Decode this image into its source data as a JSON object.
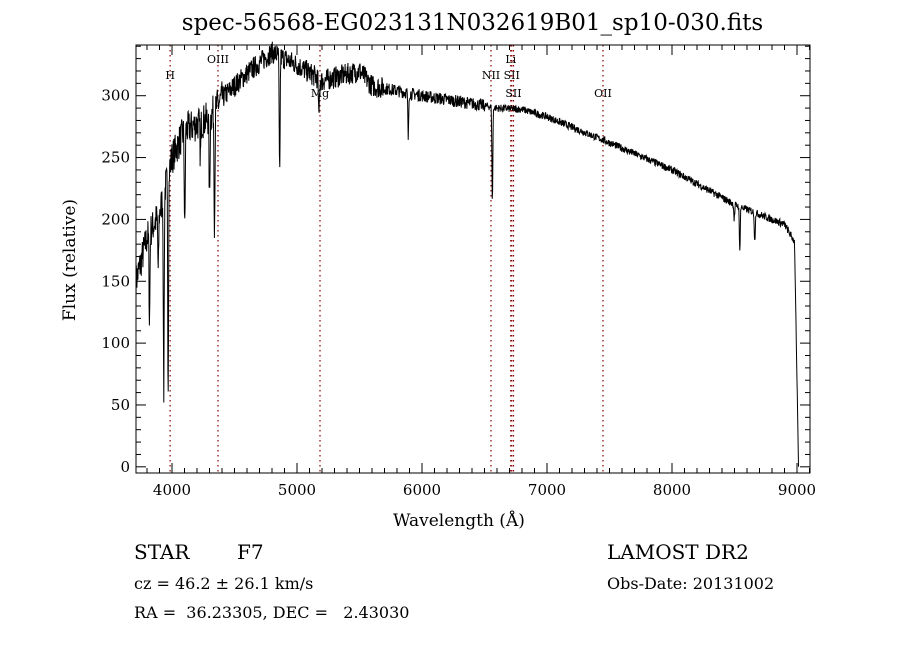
{
  "chart_data": {
    "type": "line",
    "title": "spec-56568-EG023131N032619B01_sp10-030.fits",
    "xlabel": "Wavelength (Å)",
    "ylabel": "Flux (relative)",
    "xlim": [
      3712,
      9104
    ],
    "ylim": [
      -5,
      341
    ],
    "xticks": [
      4000,
      5000,
      6000,
      7000,
      8000,
      9000
    ],
    "yticks": [
      0,
      50,
      100,
      150,
      200,
      250,
      300
    ],
    "grid": false,
    "continuum": [
      [
        3712,
        150
      ],
      [
        3800,
        185
      ],
      [
        3900,
        205
      ],
      [
        4000,
        250
      ],
      [
        4100,
        272
      ],
      [
        4300,
        282
      ],
      [
        4400,
        298
      ],
      [
        4600,
        318
      ],
      [
        4800,
        335
      ],
      [
        5000,
        325
      ],
      [
        5200,
        312
      ],
      [
        5500,
        320
      ],
      [
        5600,
        308
      ],
      [
        6000,
        300
      ],
      [
        6500,
        292
      ],
      [
        6600,
        290
      ],
      [
        6800,
        289
      ],
      [
        7000,
        283
      ],
      [
        7500,
        262
      ],
      [
        8000,
        240
      ],
      [
        8500,
        212
      ],
      [
        8900,
        196
      ],
      [
        8980,
        182
      ],
      [
        9000,
        70
      ],
      [
        9012,
        0
      ]
    ],
    "absorption_lines": [
      [
        3820,
        120
      ],
      [
        3890,
        155
      ],
      [
        3934,
        58
      ],
      [
        3969,
        66
      ],
      [
        4102,
        190
      ],
      [
        4227,
        250
      ],
      [
        4300,
        215
      ],
      [
        4340,
        198
      ],
      [
        4861,
        235
      ],
      [
        5175,
        280
      ],
      [
        5890,
        265
      ],
      [
        6563,
        215
      ],
      [
        8498,
        200
      ],
      [
        8542,
        175
      ],
      [
        8662,
        182
      ]
    ],
    "line_markers": [
      {
        "label": "H",
        "wavelength": 3985,
        "label_row": 2
      },
      {
        "label": "OIII",
        "wavelength": 4368,
        "label_row": 1
      },
      {
        "label": "Mg",
        "wavelength": 5184,
        "label_row": 3
      },
      {
        "label": "NII",
        "wavelength": 6552,
        "label_row": 2
      },
      {
        "label": "Li",
        "wavelength": 6710,
        "label_row": 1
      },
      {
        "label": "SII",
        "wavelength": 6718,
        "label_row": 2
      },
      {
        "label": "SII",
        "wavelength": 6732,
        "label_row": 3
      },
      {
        "label": "OII",
        "wavelength": 7448,
        "label_row": 3
      }
    ],
    "marker_color": "#8b0000",
    "line_color": "#000000"
  },
  "info": {
    "object_class": "STAR",
    "subclass": "F7",
    "survey": "LAMOST DR2",
    "redshift": "cz = 46.2 ± 26.1 km/s",
    "obs_date": "Obs-Date: 20131002",
    "coords": "RA =  36.23305, DEC =   2.43030"
  }
}
